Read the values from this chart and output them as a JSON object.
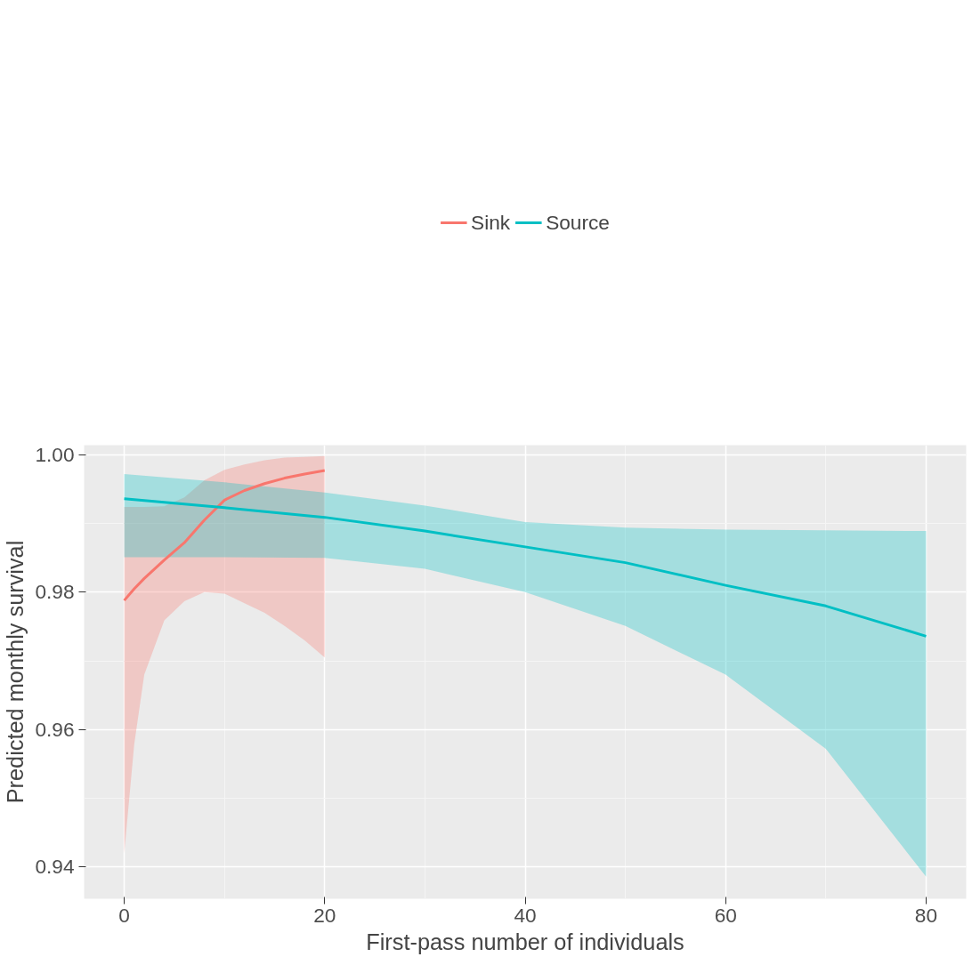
{
  "chart_data": {
    "type": "line",
    "xlabel": "First-pass number of individuals",
    "ylabel": "Predicted monthly survival",
    "xlim": [
      -4,
      84
    ],
    "ylim": [
      0.9354,
      1.0014
    ],
    "xticks": [
      0,
      20,
      40,
      60,
      80
    ],
    "yticks": [
      {
        "value": 0.94,
        "label": "0.94"
      },
      {
        "value": 0.96,
        "label": "0.96"
      },
      {
        "value": 0.98,
        "label": "0.98"
      },
      {
        "value": 1.0,
        "label": "1.00"
      }
    ],
    "grid": true,
    "legend": "top",
    "line_style": "solid",
    "marker": "none",
    "series": [
      {
        "name": "Sink",
        "color": "#f8766d",
        "x": [
          0,
          1,
          2,
          4,
          6,
          8,
          10,
          12,
          14,
          16,
          18,
          20
        ],
        "values": [
          0.9788,
          0.9805,
          0.982,
          0.9847,
          0.9872,
          0.9905,
          0.9934,
          0.9948,
          0.9958,
          0.9966,
          0.9972,
          0.9977
        ],
        "lower": [
          0.942,
          0.9579,
          0.968,
          0.9759,
          0.9787,
          0.98,
          0.9798,
          0.9784,
          0.977,
          0.9751,
          0.973,
          0.9705
        ],
        "upper": [
          0.9924,
          0.9924,
          0.9924,
          0.9925,
          0.9938,
          0.9963,
          0.9978,
          0.9986,
          0.9992,
          0.9996,
          0.9997,
          0.9998
        ]
      },
      {
        "name": "Source",
        "color": "#00bfc4",
        "x": [
          0,
          10,
          20,
          30,
          40,
          50,
          60,
          70,
          80
        ],
        "values": [
          0.9936,
          0.9923,
          0.9909,
          0.9889,
          0.9866,
          0.9843,
          0.981,
          0.978,
          0.9736
        ],
        "lower": [
          0.9851,
          0.9851,
          0.985,
          0.9834,
          0.98,
          0.9751,
          0.968,
          0.9572,
          0.9386
        ],
        "upper": [
          0.9972,
          0.996,
          0.9945,
          0.9926,
          0.9902,
          0.9894,
          0.9891,
          0.989,
          0.9889
        ]
      }
    ]
  }
}
